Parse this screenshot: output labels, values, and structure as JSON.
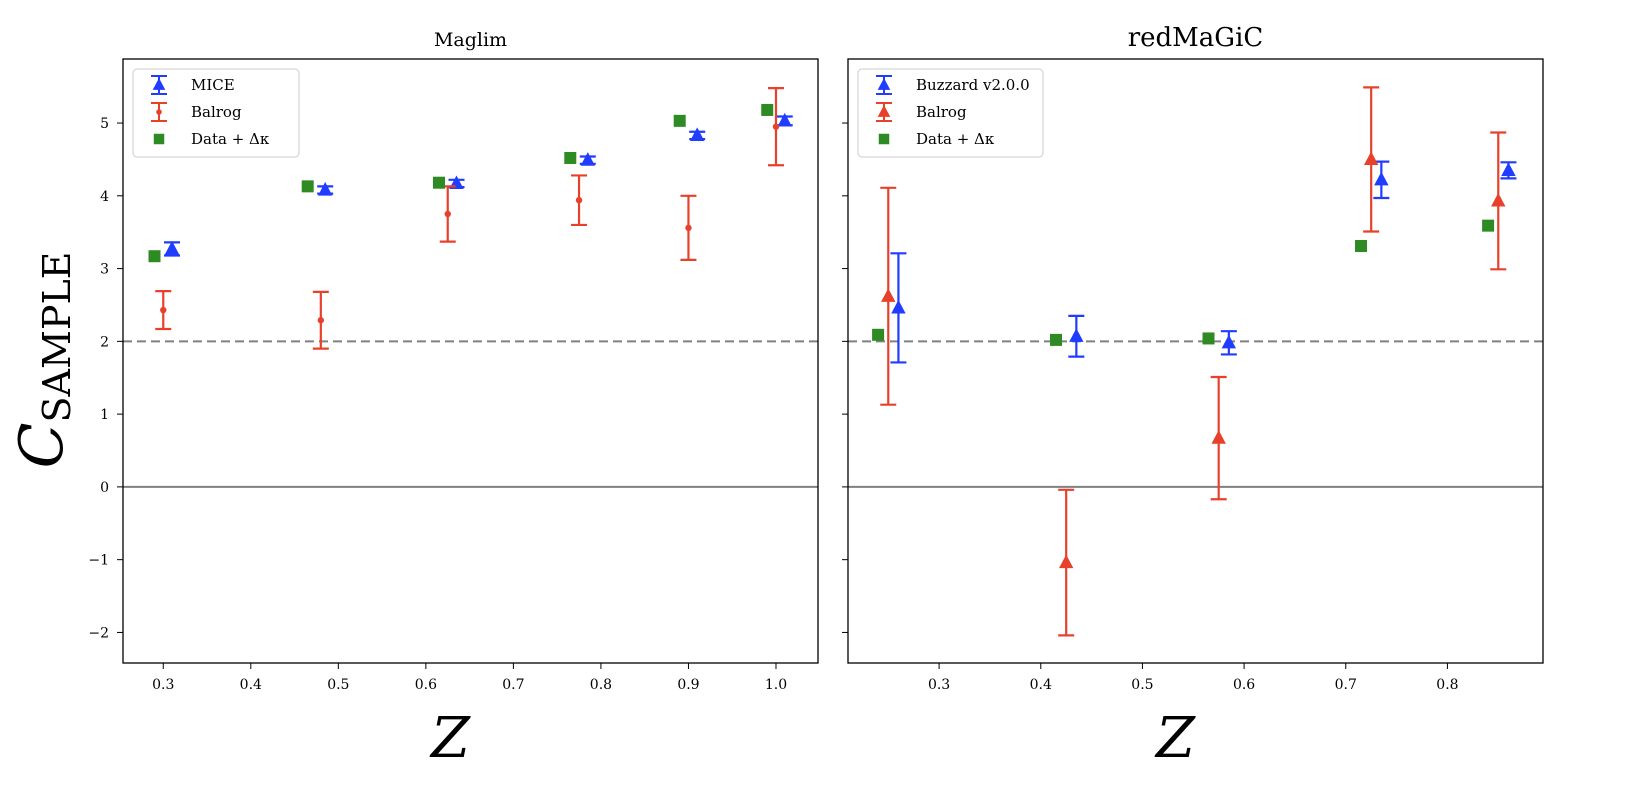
{
  "chart_data": [
    {
      "type": "scatter",
      "title": "Maglim",
      "xlabel": "Z",
      "ylabel": "C",
      "ylabel_subscript": "SAMPLE",
      "xlim": [
        0.254,
        1.048
      ],
      "ylim": [
        -2.42,
        5.88
      ],
      "xticks": [
        0.3,
        0.4,
        0.5,
        0.6,
        0.7,
        0.8,
        0.9,
        1.0
      ],
      "xtick_labels": [
        "0.3",
        "0.4",
        "0.5",
        "0.6",
        "0.7",
        "0.8",
        "0.9",
        "1.0"
      ],
      "yticks": [
        -2,
        -1,
        0,
        1,
        2,
        3,
        4,
        5
      ],
      "ytick_labels": [
        "−2",
        "−1",
        "0",
        "1",
        "2",
        "3",
        "4",
        "5"
      ],
      "hlines": [
        {
          "y": 2,
          "style": "dashed"
        },
        {
          "y": 0,
          "style": "solid"
        }
      ],
      "legend": "top-left",
      "series": [
        {
          "name": "MICE",
          "marker": "triangle",
          "color": "#1f3cff",
          "x": [
            0.31,
            0.485,
            0.635,
            0.785,
            0.91,
            1.01
          ],
          "y": [
            3.27,
            4.08,
            4.17,
            4.49,
            4.83,
            5.03
          ],
          "err": [
            0.09,
            0.05,
            0.05,
            0.05,
            0.05,
            0.06
          ]
        },
        {
          "name": "Balrog",
          "marker": "circle",
          "color": "#e8412b",
          "x": [
            0.3,
            0.48,
            0.625,
            0.775,
            0.9,
            1.0
          ],
          "y": [
            2.43,
            2.29,
            3.75,
            3.94,
            3.56,
            4.95
          ],
          "err": [
            0.26,
            0.39,
            0.38,
            0.34,
            0.44,
            0.53
          ]
        },
        {
          "name": "Data + Δκ",
          "marker": "square",
          "color": "#2e8a22",
          "x": [
            0.29,
            0.465,
            0.615,
            0.765,
            0.89,
            0.99
          ],
          "y": [
            3.17,
            4.13,
            4.18,
            4.52,
            5.03,
            5.18
          ],
          "err": [
            0,
            0,
            0,
            0,
            0,
            0
          ]
        }
      ]
    },
    {
      "type": "scatter",
      "title": "redMaGiC",
      "xlabel": "Z",
      "xlim": [
        0.2104,
        0.894
      ],
      "ylim": [
        -2.42,
        5.88
      ],
      "xticks": [
        0.3,
        0.4,
        0.5,
        0.6,
        0.7,
        0.8
      ],
      "xtick_labels": [
        "0.3",
        "0.4",
        "0.5",
        "0.6",
        "0.7",
        "0.8"
      ],
      "yticks": [
        -2,
        -1,
        0,
        1,
        2,
        3,
        4,
        5
      ],
      "hlines": [
        {
          "y": 2,
          "style": "dashed"
        },
        {
          "y": 0,
          "style": "solid"
        }
      ],
      "legend": "top-left",
      "series": [
        {
          "name": "Buzzard v2.0.0",
          "marker": "triangle",
          "color": "#1f3cff",
          "x": [
            0.26,
            0.435,
            0.585,
            0.735,
            0.86
          ],
          "y": [
            2.46,
            2.07,
            1.98,
            4.22,
            4.35
          ],
          "err": [
            0.75,
            0.28,
            0.16,
            0.25,
            0.11
          ]
        },
        {
          "name": "Balrog",
          "marker": "triangle",
          "color": "#e8412b",
          "x": [
            0.25,
            0.425,
            0.575,
            0.725,
            0.85
          ],
          "y": [
            2.62,
            -1.04,
            0.67,
            4.5,
            3.93
          ],
          "err": [
            1.49,
            1.0,
            0.84,
            0.99,
            0.94
          ]
        },
        {
          "name": "Data + Δκ",
          "marker": "square",
          "color": "#2e8a22",
          "x": [
            0.24,
            0.415,
            0.565,
            0.715,
            0.84
          ],
          "y": [
            2.09,
            2.02,
            2.04,
            3.31,
            3.59
          ],
          "err": [
            0,
            0,
            0,
            0,
            0
          ]
        }
      ]
    }
  ]
}
